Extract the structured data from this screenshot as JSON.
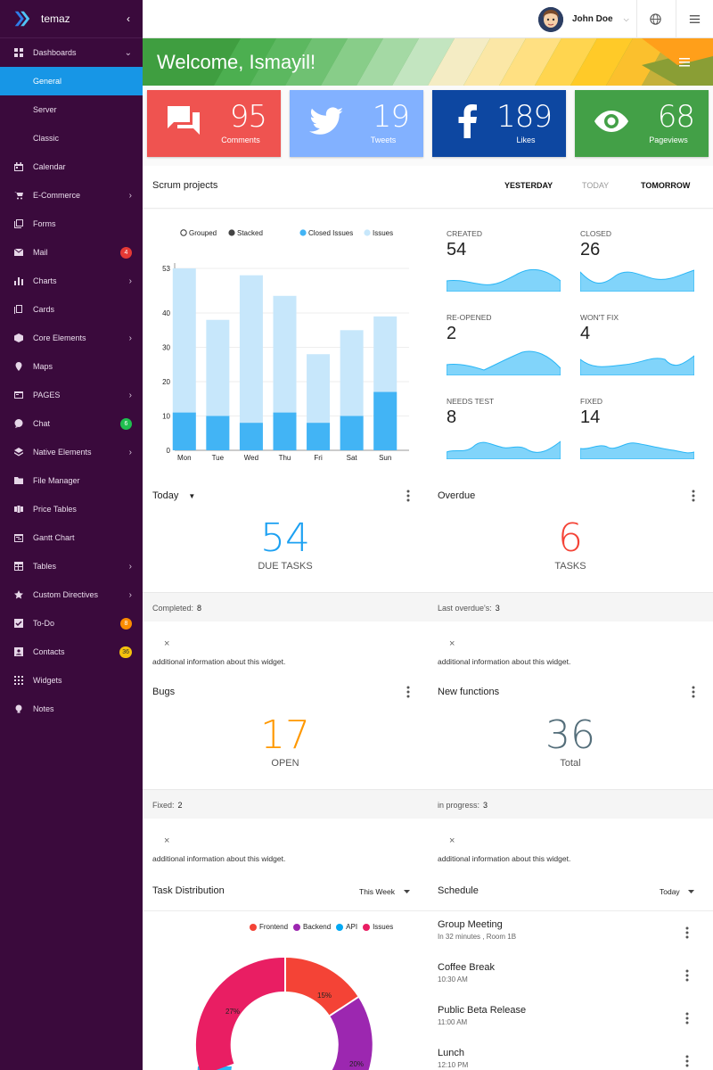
{
  "brand": {
    "name": "temaz",
    "collapse": "‹"
  },
  "sidebar": {
    "items": [
      {
        "label": "Dashboards",
        "icon": "grid-icon",
        "chev": "⌄"
      },
      {
        "label": "General",
        "sub": true,
        "active": true
      },
      {
        "label": "Server",
        "sub": true
      },
      {
        "label": "Classic",
        "sub": true
      },
      {
        "label": "Calendar",
        "icon": "calendar-icon"
      },
      {
        "label": "E-Commerce",
        "icon": "cart-icon",
        "chev": "›"
      },
      {
        "label": "Forms",
        "icon": "forms-icon"
      },
      {
        "label": "Mail",
        "icon": "mail-icon",
        "badge": "4",
        "badge_color": "#e53935"
      },
      {
        "label": "Charts",
        "icon": "chart-icon",
        "chev": "›"
      },
      {
        "label": "Cards",
        "icon": "cards-icon"
      },
      {
        "label": "Core Elements",
        "icon": "cube-icon",
        "chev": "›"
      },
      {
        "label": "Maps",
        "icon": "pin-icon"
      },
      {
        "label": "PAGES",
        "icon": "pages-icon",
        "chev": "›"
      },
      {
        "label": "Chat",
        "icon": "chat-icon",
        "badge": "6",
        "badge_color": "#1fbf4f"
      },
      {
        "label": "Native Elements",
        "icon": "layers-icon",
        "chev": "›"
      },
      {
        "label": "File Manager",
        "icon": "folder-icon"
      },
      {
        "label": "Price Tables",
        "icon": "price-icon"
      },
      {
        "label": "Gantt Chart",
        "icon": "gantt-icon"
      },
      {
        "label": "Tables",
        "icon": "table-icon",
        "chev": "›"
      },
      {
        "label": "Custom Directives",
        "icon": "star-icon",
        "chev": "›"
      },
      {
        "label": "To-Do",
        "icon": "checkbox-icon",
        "badge": "8",
        "badge_color": "#fb8c00"
      },
      {
        "label": "Contacts",
        "icon": "contacts-icon",
        "badge": "36",
        "badge_color": "#f4c20d"
      },
      {
        "label": "Widgets",
        "icon": "widgets-icon"
      },
      {
        "label": "Notes",
        "icon": "bulb-icon"
      }
    ]
  },
  "topbar": {
    "user_name": "John Doe"
  },
  "banner": {
    "title": "Welcome, Ismayil!"
  },
  "stats": [
    {
      "value": "95",
      "label": "Comments",
      "color": "#ef5350",
      "icon": "comments-icon"
    },
    {
      "value": "19",
      "label": "Tweets",
      "color": "#82b1ff",
      "icon": "twitter-icon"
    },
    {
      "value": "189",
      "label": "Likes",
      "color": "#0d47a1",
      "icon": "facebook-icon"
    },
    {
      "value": "68",
      "label": "Pageviews",
      "color": "#43a047",
      "icon": "eye-icon"
    }
  ],
  "scrum": {
    "title": "Scrum projects",
    "tabs": [
      "YESTERDAY",
      "TODAY",
      "TOMORROW"
    ],
    "metrics": [
      {
        "label": "CREATED",
        "value": "54"
      },
      {
        "label": "CLOSED",
        "value": "26"
      },
      {
        "label": "RE-OPENED",
        "value": "2"
      },
      {
        "label": "WON'T FIX",
        "value": "4"
      },
      {
        "label": "NEEDS TEST",
        "value": "8"
      },
      {
        "label": "FIXED",
        "value": "14"
      }
    ]
  },
  "chart_data": {
    "type": "bar",
    "categories": [
      "Mon",
      "Tue",
      "Wed",
      "Thu",
      "Fri",
      "Sat",
      "Sun"
    ],
    "series": [
      {
        "name": "Closed Issues",
        "values": [
          11,
          10,
          8,
          11,
          8,
          10,
          17
        ],
        "color": "#42b4f5"
      },
      {
        "name": "Issues",
        "values": [
          53,
          38,
          51,
          45,
          28,
          35,
          39
        ],
        "color": "#c7e7fb"
      }
    ],
    "legend_options": [
      "Grouped",
      "Stacked"
    ],
    "yticks": [
      0,
      10,
      20,
      30,
      40,
      53
    ],
    "ylim": [
      0,
      53
    ],
    "legend": "top"
  },
  "widgets": {
    "today": {
      "title": "Today",
      "value": "54",
      "caption": "DUE TASKS",
      "foot_label": "Completed:",
      "foot_value": "8",
      "info": "additional information about this widget.",
      "close": "×"
    },
    "overdue": {
      "title": "Overdue",
      "value": "6",
      "caption": "TASKS",
      "foot_label": "Last overdue's:",
      "foot_value": "3",
      "info": "additional information about this widget.",
      "close": "×"
    },
    "bugs": {
      "title": "Bugs",
      "value": "17",
      "caption": "OPEN",
      "foot_label": "Fixed:",
      "foot_value": "2",
      "info": "additional information about this widget.",
      "close": "×"
    },
    "functions": {
      "title": "New functions",
      "value": "36",
      "caption": "Total",
      "foot_label": "in progress:",
      "foot_value": "3",
      "info": "additional information about this widget.",
      "close": "×"
    }
  },
  "distribution": {
    "title": "Task Distribution",
    "period": "This Week",
    "legend": [
      {
        "name": "Frontend",
        "color": "#f44336"
      },
      {
        "name": "Backend",
        "color": "#9c27b0"
      },
      {
        "name": "API",
        "color": "#03a9f4"
      },
      {
        "name": "Issues",
        "color": "#e91e63"
      }
    ],
    "labels": {
      "frontend": "15%",
      "backend": "20%",
      "issues": "27%"
    }
  },
  "schedule": {
    "title": "Schedule",
    "period": "Today",
    "items": [
      {
        "title": "Group Meeting",
        "meta": "In 32 minutes , Room 1B"
      },
      {
        "title": "Coffee Break",
        "meta": "10:30 AM"
      },
      {
        "title": "Public Beta Release",
        "meta": "11:00 AM"
      },
      {
        "title": "Lunch",
        "meta": "12:10 PM"
      }
    ]
  }
}
